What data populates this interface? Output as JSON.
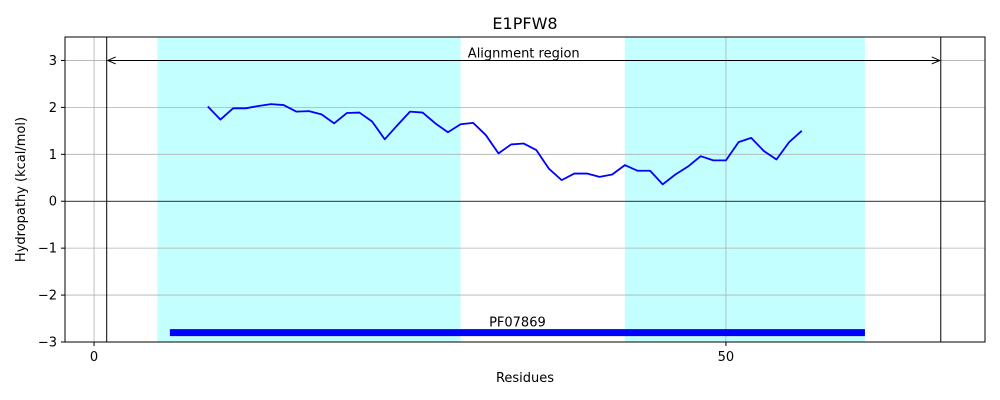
{
  "chart_data": {
    "type": "line",
    "title": "E1PFW8",
    "xlabel": "Residues",
    "ylabel": "Hydropathy (kcal/mol)",
    "xlim": [
      -2.3,
      70.5
    ],
    "ylim": [
      -3,
      3.5
    ],
    "grid": true,
    "xticks": [
      {
        "value": 0,
        "label": "0"
      },
      {
        "value": 50,
        "label": "50"
      }
    ],
    "yticks": [
      {
        "value": 3,
        "label": "3"
      },
      {
        "value": 2,
        "label": "2"
      },
      {
        "value": 1,
        "label": "1"
      },
      {
        "value": 0,
        "label": "0"
      },
      {
        "value": -1,
        "label": "−1"
      },
      {
        "value": -2,
        "label": "−2"
      },
      {
        "value": -3,
        "label": "−3"
      }
    ],
    "line_color": "#0000ff",
    "band_color": "#c4ffff",
    "bar_color": "#0000ff",
    "shaded_regions": [
      {
        "start": 5,
        "end": 29
      },
      {
        "start": 42,
        "end": 61
      }
    ],
    "vertical_lines": [
      1,
      67
    ],
    "alignment": {
      "start": 1,
      "end": 67,
      "y": 3,
      "label": "Alignment region"
    },
    "domain_bar": {
      "start": 6,
      "end": 61,
      "y": -2.8,
      "label": "PF07869"
    },
    "series": [
      {
        "x": [
          9,
          10,
          11,
          12,
          13,
          14,
          15,
          16,
          17,
          18,
          19,
          20,
          21,
          22,
          23,
          24,
          25,
          26,
          27,
          28,
          29,
          30,
          31,
          32,
          33,
          34,
          35,
          36,
          37,
          38,
          39,
          40,
          41,
          42,
          43,
          44,
          45,
          46,
          47,
          48,
          49,
          50,
          51,
          52,
          53,
          54,
          55,
          56
        ],
        "values": [
          2.02,
          1.74,
          1.98,
          1.98,
          2.03,
          2.07,
          2.05,
          1.91,
          1.92,
          1.85,
          1.66,
          1.88,
          1.89,
          1.7,
          1.32,
          1.62,
          1.91,
          1.89,
          1.66,
          1.47,
          1.64,
          1.67,
          1.41,
          1.02,
          1.21,
          1.23,
          1.09,
          0.69,
          0.45,
          0.59,
          0.59,
          0.52,
          0.57,
          0.77,
          0.65,
          0.65,
          0.36,
          0.57,
          0.74,
          0.96,
          0.87,
          0.87,
          1.26,
          1.35,
          1.07,
          0.89,
          1.26,
          1.5
        ]
      }
    ]
  }
}
